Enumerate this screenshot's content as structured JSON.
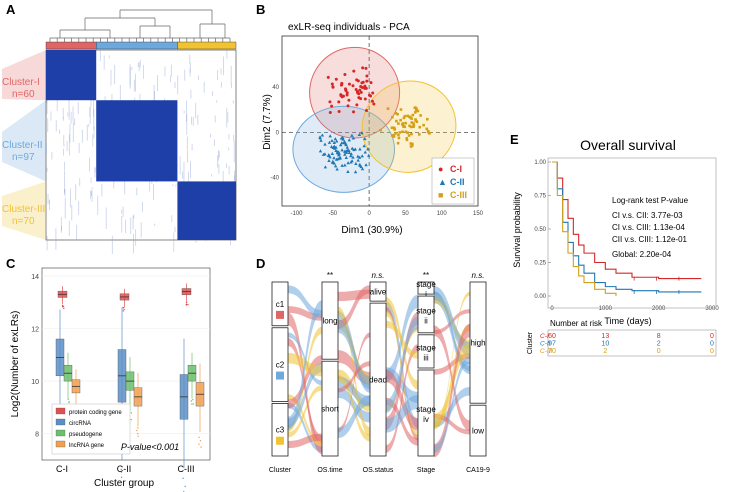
{
  "panels": {
    "A": {
      "label": "A",
      "clusters": [
        {
          "name": "Cluster-I",
          "n": "n=60",
          "color": "#e06666"
        },
        {
          "name": "Cluster-II",
          "n": "n=97",
          "color": "#6fa8dc"
        },
        {
          "name": "Cluster-III",
          "n": "n=70",
          "color": "#f1c232"
        }
      ],
      "heat_color": "#1f3fa8"
    },
    "B": {
      "label": "B",
      "title": "exLR-seq individuals - PCA",
      "xlabel": "Dim1 (30.9%)",
      "ylabel": "Dim2 (7.7%)",
      "xticks": [
        "-100",
        "-50",
        "0",
        "50",
        "100",
        "150"
      ],
      "yticks": [
        "40",
        "0",
        "-40"
      ],
      "legend": [
        {
          "label": "C-I",
          "color": "#d62728",
          "symbol": "●"
        },
        {
          "label": "C-II",
          "color": "#1f77b4",
          "symbol": "▲"
        },
        {
          "label": "C-III",
          "color": "#d4a017",
          "symbol": "■"
        }
      ]
    },
    "C": {
      "label": "C",
      "ylabel": "Log2(Number of exLRs)",
      "xlabel": "Cluster group",
      "yticks": [
        "14",
        "12",
        "10",
        "8"
      ],
      "groups": [
        "C-I",
        "C-II",
        "C-III"
      ],
      "legend": [
        {
          "label": "protein coding gene",
          "color": "#e05050"
        },
        {
          "label": "circRNA",
          "color": "#5b8fc7"
        },
        {
          "label": "pseudogene",
          "color": "#6cc06c"
        },
        {
          "label": "lncRNA gene",
          "color": "#f0a050"
        }
      ],
      "pvalue": "P-value<0.001"
    },
    "D": {
      "label": "D",
      "axes": [
        "Cluster",
        "OS.time",
        "OS.status",
        "Stage",
        "CA19-9"
      ],
      "sig": [
        "**",
        "n.s.",
        "**",
        "n.s."
      ],
      "cluster_nodes": [
        "c1",
        "c2",
        "c3"
      ],
      "time_nodes": [
        "long",
        "short"
      ],
      "status_nodes": [
        "alive",
        "dead"
      ],
      "stage_nodes": [
        "stage i",
        "stage ii",
        "stage iii",
        "stage iv"
      ],
      "ca_nodes": [
        "high",
        "low"
      ]
    },
    "E": {
      "label": "E",
      "title": "Overall survival",
      "ylabel": "Survival probability",
      "xlabel": "Time (days)",
      "xticks": [
        "0",
        "1000",
        "2000",
        "3000"
      ],
      "yticks": [
        "1.00",
        "0.75",
        "0.50",
        "0.25",
        "0.00"
      ],
      "test_title": "Log-rank test P-value",
      "tests": [
        "CI v.s. CII: 3.77e-03",
        "CI v.s. CIII: 1.13e-04",
        "CII v.s. CIII: 1.12e-01"
      ],
      "global": "Global: 2.20e-04",
      "risk_title": "Number at risk",
      "risk_axis": "Cluster",
      "risk_rows": [
        {
          "name": "C-I",
          "color": "#d62728",
          "values": [
            "60",
            "13",
            "8",
            "0"
          ]
        },
        {
          "name": "C-II",
          "color": "#1f77b4",
          "values": [
            "97",
            "10",
            "2",
            "0"
          ]
        },
        {
          "name": "C-III",
          "color": "#d4a017",
          "values": [
            "70",
            "2",
            "0",
            "0"
          ]
        }
      ]
    }
  },
  "chart_data": [
    {
      "type": "scatter",
      "title": "exLR-seq individuals - PCA",
      "xlabel": "Dim1 (30.9%)",
      "ylabel": "Dim2 (7.7%)",
      "xlim": [
        -120,
        150
      ],
      "ylim": [
        -65,
        85
      ],
      "series": [
        {
          "name": "C-I",
          "centroid": [
            -20,
            35
          ]
        },
        {
          "name": "C-II",
          "centroid": [
            -35,
            -15
          ]
        },
        {
          "name": "C-III",
          "centroid": [
            55,
            5
          ]
        }
      ]
    },
    {
      "type": "box",
      "xlabel": "Cluster group",
      "ylabel": "Log2(Number of exLRs)",
      "ylim": [
        7,
        14.3
      ],
      "categories": [
        "C-I",
        "C-II",
        "C-III"
      ],
      "series": [
        {
          "name": "protein coding gene",
          "medians": [
            13.3,
            13.2,
            13.4
          ]
        },
        {
          "name": "circRNA",
          "medians": [
            10.9,
            10.2,
            9.4
          ]
        },
        {
          "name": "pseudogene",
          "medians": [
            10.3,
            10.0,
            10.3
          ]
        },
        {
          "name": "lncRNA gene",
          "medians": [
            9.8,
            9.4,
            9.5
          ]
        }
      ]
    },
    {
      "type": "line",
      "title": "Overall survival",
      "xlabel": "Time (days)",
      "ylabel": "Survival probability",
      "xlim": [
        0,
        3000
      ],
      "ylim": [
        0,
        1
      ],
      "series": [
        {
          "name": "C-I",
          "x": [
            0,
            100,
            200,
            300,
            400,
            500,
            600,
            800,
            1000,
            1200,
            1500,
            2000,
            2500,
            2800
          ],
          "y": [
            1.0,
            0.88,
            0.72,
            0.58,
            0.46,
            0.38,
            0.32,
            0.25,
            0.2,
            0.17,
            0.14,
            0.13,
            0.13,
            0.13
          ]
        },
        {
          "name": "C-II",
          "x": [
            0,
            100,
            200,
            300,
            400,
            500,
            600,
            800,
            1000,
            1200,
            1500,
            2000,
            2500,
            2800
          ],
          "y": [
            1.0,
            0.8,
            0.55,
            0.4,
            0.3,
            0.23,
            0.17,
            0.1,
            0.07,
            0.05,
            0.04,
            0.03,
            0.03,
            0.03
          ]
        },
        {
          "name": "C-III",
          "x": [
            0,
            100,
            200,
            300,
            400,
            500,
            600,
            800,
            1000,
            1200
          ],
          "y": [
            1.0,
            0.75,
            0.48,
            0.32,
            0.22,
            0.15,
            0.1,
            0.05,
            0.02,
            0.0
          ]
        }
      ]
    }
  ]
}
